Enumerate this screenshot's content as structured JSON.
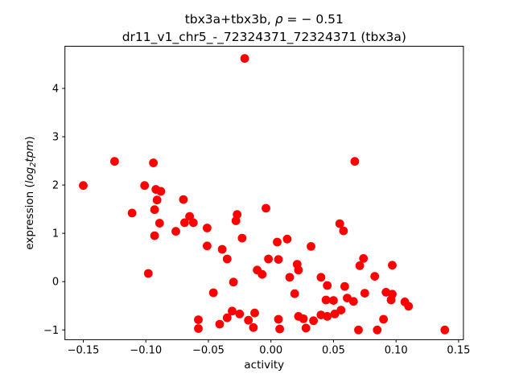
{
  "figure": {
    "title_line1_prefix": "tbx3a+tbx3b, ",
    "title_rho": "ρ",
    "title_line1_suffix": " = − 0.51",
    "title_line2": "dr11_v1_chr5_-_72324371_72324371 (tbx3a)",
    "xlabel": "activity",
    "ylabel_prefix": "expression (",
    "ylabel_log": "log",
    "ylabel_sub": "2",
    "ylabel_var": "tpm",
    "ylabel_suffix": ")"
  },
  "chart_data": {
    "type": "scatter",
    "title": "tbx3a+tbx3b, ρ = − 0.51",
    "subtitle": "dr11_v1_chr5_-_72324371_72324371 (tbx3a)",
    "xlabel": "activity",
    "ylabel": "expression (log2 tpm)",
    "correlation_rho": -0.51,
    "marker_color": "#ff0000",
    "marker_radius_px": 5.4,
    "grid": false,
    "legend": null,
    "xlim": [
      -0.165,
      0.154
    ],
    "ylim": [
      -1.21,
      4.87
    ],
    "xticks": [
      -0.15,
      -0.1,
      -0.05,
      0.0,
      0.05,
      0.1,
      0.15
    ],
    "xtick_labels": [
      "−0.15",
      "−0.10",
      "−0.05",
      "0.00",
      "0.05",
      "0.10",
      "0.15"
    ],
    "yticks": [
      -1,
      0,
      1,
      2,
      3,
      4
    ],
    "ytick_labels": [
      "−1",
      "0",
      "1",
      "2",
      "3",
      "4"
    ],
    "points": [
      [
        -0.15,
        1.99
      ],
      [
        -0.125,
        2.49
      ],
      [
        -0.094,
        2.46
      ],
      [
        -0.111,
        1.42
      ],
      [
        -0.101,
        1.99
      ],
      [
        -0.092,
        1.91
      ],
      [
        -0.088,
        1.87
      ],
      [
        -0.091,
        1.69
      ],
      [
        -0.093,
        1.49
      ],
      [
        -0.089,
        1.21
      ],
      [
        -0.093,
        0.95
      ],
      [
        -0.098,
        0.17
      ],
      [
        -0.076,
        1.04
      ],
      [
        -0.07,
        1.7
      ],
      [
        -0.065,
        1.35
      ],
      [
        -0.069,
        1.22
      ],
      [
        -0.062,
        1.22
      ],
      [
        -0.051,
        1.11
      ],
      [
        -0.051,
        0.74
      ],
      [
        -0.039,
        0.67
      ],
      [
        -0.035,
        0.47
      ],
      [
        -0.027,
        1.39
      ],
      [
        -0.028,
        1.26
      ],
      [
        -0.023,
        0.9
      ],
      [
        -0.021,
        4.62
      ],
      [
        -0.004,
        1.52
      ],
      [
        -0.011,
        0.24
      ],
      [
        -0.007,
        0.15
      ],
      [
        -0.03,
        -0.01
      ],
      [
        -0.046,
        -0.23
      ],
      [
        0.067,
        2.49
      ],
      [
        0.055,
        1.2
      ],
      [
        0.058,
        1.05
      ],
      [
        0.005,
        0.82
      ],
      [
        0.013,
        0.88
      ],
      [
        0.032,
        0.73
      ],
      [
        -0.002,
        0.47
      ],
      [
        0.006,
        0.46
      ],
      [
        0.021,
        0.36
      ],
      [
        0.022,
        0.24
      ],
      [
        0.015,
        0.09
      ],
      [
        0.04,
        0.09
      ],
      [
        0.045,
        -0.08
      ],
      [
        0.059,
        -0.1
      ],
      [
        0.083,
        0.11
      ],
      [
        0.074,
        0.48
      ],
      [
        0.071,
        0.33
      ],
      [
        0.097,
        0.34
      ],
      [
        0.075,
        -0.24
      ],
      [
        0.061,
        -0.34
      ],
      [
        0.066,
        -0.41
      ],
      [
        0.044,
        -0.38
      ],
      [
        0.05,
        -0.39
      ],
      [
        0.019,
        -0.25
      ],
      [
        0.092,
        -0.22
      ],
      [
        0.097,
        -0.26
      ],
      [
        0.096,
        -0.38
      ],
      [
        0.107,
        -0.42
      ],
      [
        0.11,
        -0.51
      ],
      [
        0.04,
        -0.69
      ],
      [
        0.045,
        -0.72
      ],
      [
        0.051,
        -0.67
      ],
      [
        0.056,
        -0.59
      ],
      [
        0.022,
        -0.72
      ],
      [
        0.026,
        -0.77
      ],
      [
        0.034,
        -0.81
      ],
      [
        0.006,
        -0.78
      ],
      [
        0.007,
        -0.98
      ],
      [
        0.028,
        -0.96
      ],
      [
        0.07,
        -1.0
      ],
      [
        0.085,
        -1.0
      ],
      [
        0.139,
        -1.0
      ],
      [
        0.09,
        -0.78
      ],
      [
        -0.058,
        -0.79
      ],
      [
        -0.058,
        -0.97
      ],
      [
        -0.041,
        -0.88
      ],
      [
        -0.035,
        -0.75
      ],
      [
        -0.031,
        -0.61
      ],
      [
        -0.025,
        -0.67
      ],
      [
        -0.018,
        -0.8
      ],
      [
        -0.013,
        -0.65
      ],
      [
        -0.014,
        -0.95
      ]
    ]
  }
}
